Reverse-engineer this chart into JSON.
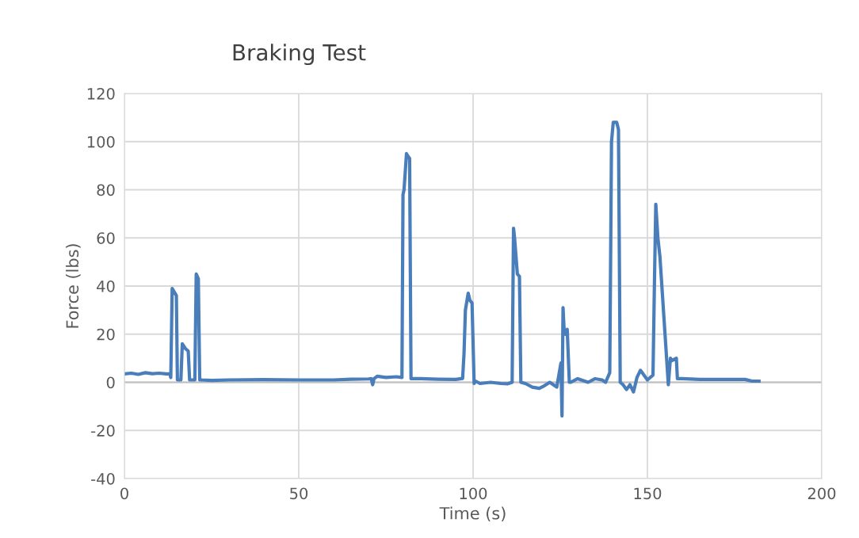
{
  "chart_data": {
    "type": "line",
    "title": "Braking Test",
    "xlabel": "Time (s)",
    "ylabel": "Force (lbs)",
    "xlim": [
      0,
      200
    ],
    "xticks": [
      0,
      50,
      100,
      150,
      200
    ],
    "ylim": [
      -40,
      120
    ],
    "yticks": [
      -40,
      -20,
      0,
      20,
      40,
      60,
      80,
      100,
      120
    ],
    "grid": true,
    "marker": "none",
    "legend": false,
    "series": [
      {
        "color": "#4a7ebb",
        "x": [
          0,
          2,
          4,
          6,
          8,
          10,
          12,
          13,
          13.3,
          13.7,
          14.5,
          14.9,
          15.2,
          16.2,
          16.6,
          17.5,
          18.3,
          18.7,
          20.2,
          20.6,
          21.2,
          21.6,
          22,
          25,
          30,
          40,
          50,
          60,
          65,
          70,
          70.8,
          71.2,
          71.6,
          72.5,
          75,
          78,
          79.6,
          79.9,
          80.2,
          80.9,
          81.3,
          81.8,
          82.2,
          85,
          90,
          95,
          97,
          97.4,
          97.8,
          98.6,
          99.1,
          99.7,
          100.3,
          100.7,
          102,
          105,
          108,
          110,
          111.2,
          111.6,
          111.9,
          112.7,
          113.3,
          113.7,
          115,
          117,
          119,
          120,
          122,
          124,
          125.2,
          125.5,
          125.8,
          126.1,
          126.5,
          127,
          127.6,
          128,
          130,
          133,
          135,
          137,
          138,
          139.2,
          139.7,
          140.2,
          141.2,
          141.7,
          142.2,
          143,
          144,
          145,
          146,
          147,
          148,
          150,
          151.6,
          152,
          152.4,
          153,
          153.6,
          155.5,
          156,
          156.6,
          157,
          158.3,
          158.6,
          160,
          165,
          170,
          175,
          178,
          180,
          182
        ],
        "values": [
          3.5,
          3.8,
          3.3,
          4,
          3.6,
          3.8,
          3.5,
          3.6,
          2,
          39,
          37,
          36,
          1,
          1,
          16,
          14,
          13,
          1,
          1,
          45,
          43,
          1,
          1,
          0.8,
          1,
          1.1,
          1,
          1,
          1.3,
          1.4,
          1.5,
          -1,
          1.5,
          2.5,
          2,
          2.3,
          2,
          78,
          80,
          95,
          94,
          93,
          1.5,
          1.5,
          1.3,
          1.2,
          1.6,
          12,
          30,
          37,
          34,
          33,
          -0.5,
          0.5,
          -0.5,
          0,
          -0.5,
          -0.6,
          0,
          64,
          60,
          45,
          44,
          0,
          -0.5,
          -2,
          -2.5,
          -1.8,
          0,
          -2,
          8,
          -14,
          31,
          22,
          20,
          22,
          0,
          0,
          1.5,
          0,
          1.5,
          1,
          0,
          4,
          100,
          108,
          108,
          105,
          0,
          -1,
          -3,
          -1,
          -4,
          2,
          5,
          1,
          3,
          40,
          74,
          60,
          52,
          10,
          -1,
          10,
          9,
          10,
          1.5,
          1.5,
          1.2,
          1.2,
          1.2,
          1.2,
          0.5,
          0.5
        ]
      }
    ]
  }
}
